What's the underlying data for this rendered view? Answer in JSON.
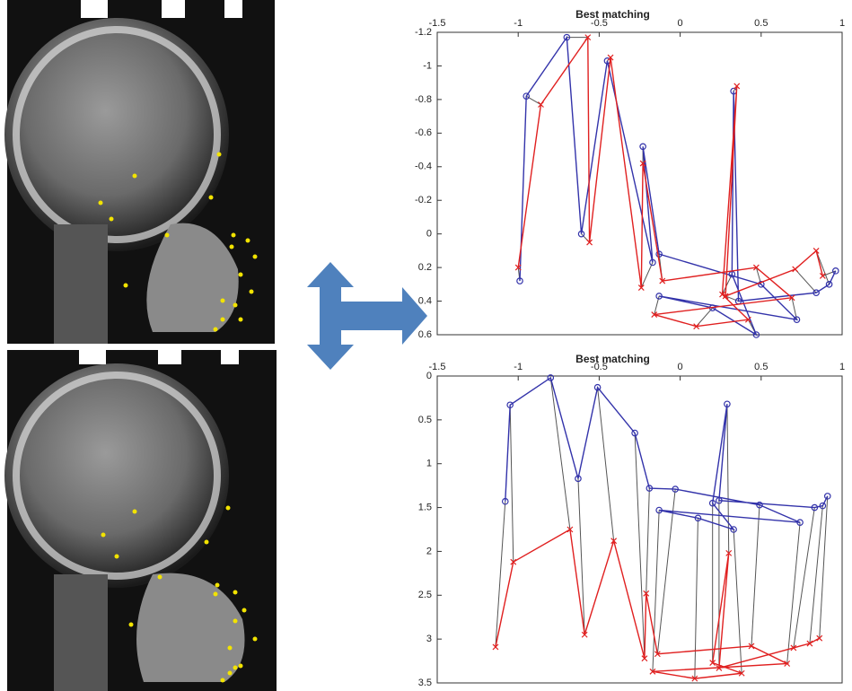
{
  "chart_data": [
    {
      "type": "line",
      "title": "Best matching",
      "xlim": [
        -1.5,
        1
      ],
      "xticks": [
        -1.5,
        -1,
        -0.5,
        0,
        0.5,
        1
      ],
      "ylim": [
        -1.2,
        0.6
      ],
      "yticks": [
        -1.2,
        -1,
        -0.8,
        -0.6,
        -0.4,
        -0.2,
        0,
        0.2,
        0.4,
        0.6
      ],
      "y_reversed": true,
      "x_ticks_on_top": true,
      "connect_pairs": true,
      "series": [
        {
          "color": "#3333aa",
          "marker": "circle",
          "x": [
            -0.99,
            -0.95,
            -0.7,
            -0.61,
            -0.45,
            -0.17,
            -0.23,
            -0.13,
            0.5,
            0.72,
            -0.13,
            0.2,
            0.47,
            0.32,
            0.33,
            0.36,
            0.84,
            0.92,
            0.96
          ],
          "values": [
            0.28,
            -0.82,
            -1.17,
            0.0,
            -1.03,
            0.17,
            -0.52,
            0.12,
            0.3,
            0.51,
            0.37,
            0.44,
            0.6,
            0.24,
            -0.85,
            0.4,
            0.35,
            0.3,
            0.22
          ]
        },
        {
          "color": "#e02020",
          "marker": "cross",
          "x": [
            -1.0,
            -0.86,
            -0.57,
            -0.56,
            -0.43,
            -0.24,
            -0.23,
            -0.11,
            0.47,
            0.69,
            -0.16,
            0.1,
            0.42,
            0.26,
            0.35,
            0.28,
            0.71,
            0.84,
            0.88
          ],
          "values": [
            0.2,
            -0.77,
            -1.17,
            0.05,
            -1.05,
            0.32,
            -0.42,
            0.28,
            0.2,
            0.38,
            0.48,
            0.55,
            0.51,
            0.36,
            -0.88,
            0.37,
            0.21,
            0.1,
            0.25
          ]
        }
      ]
    },
    {
      "type": "line",
      "title": "Best matching",
      "xlim": [
        -1.5,
        1
      ],
      "xticks": [
        -1.5,
        -1,
        -0.5,
        0,
        0.5,
        1
      ],
      "ylim": [
        0,
        3.5
      ],
      "yticks": [
        0,
        0.5,
        1,
        1.5,
        2,
        2.5,
        3,
        3.5
      ],
      "y_reversed": true,
      "x_ticks_on_top": true,
      "connect_pairs": true,
      "series": [
        {
          "color": "#3333aa",
          "marker": "circle",
          "x": [
            -1.08,
            -1.05,
            -0.8,
            -0.63,
            -0.51,
            -0.28,
            -0.19,
            -0.03,
            0.49,
            0.74,
            -0.13,
            0.11,
            0.33,
            0.2,
            0.29,
            0.24,
            0.83,
            0.88,
            0.91
          ],
          "values": [
            1.43,
            0.33,
            0.02,
            1.17,
            0.13,
            0.65,
            1.28,
            1.29,
            1.47,
            1.67,
            1.53,
            1.62,
            1.75,
            1.45,
            0.32,
            1.42,
            1.5,
            1.48,
            1.37
          ]
        },
        {
          "color": "#e02020",
          "marker": "cross",
          "x": [
            -1.14,
            -1.03,
            -0.68,
            -0.59,
            -0.41,
            -0.22,
            -0.21,
            -0.14,
            0.44,
            0.66,
            -0.17,
            0.09,
            0.38,
            0.2,
            0.3,
            0.24,
            0.7,
            0.8,
            0.86
          ],
          "values": [
            3.09,
            2.12,
            1.75,
            2.95,
            1.88,
            3.22,
            2.48,
            3.17,
            3.08,
            3.28,
            3.37,
            3.45,
            3.39,
            3.27,
            2.02,
            3.33,
            3.1,
            3.05,
            2.99
          ]
        }
      ]
    }
  ]
}
